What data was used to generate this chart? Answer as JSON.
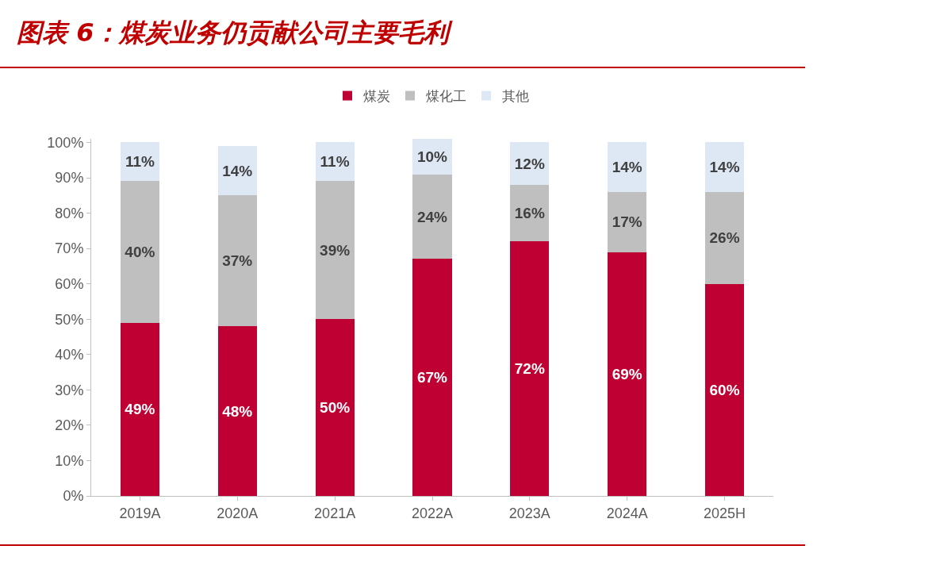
{
  "chart_data": {
    "type": "bar",
    "stacked": true,
    "title": "图表 6：煤炭业务仍贡献公司主要毛利",
    "categories": [
      "2019A",
      "2020A",
      "2021A",
      "2022A",
      "2023A",
      "2024A",
      "2025H"
    ],
    "series": [
      {
        "name": "煤炭",
        "color": "#be0032",
        "values": [
          49,
          48,
          50,
          67,
          72,
          69,
          60
        ],
        "value_labels": [
          "49%",
          "48%",
          "50%",
          "67%",
          "72%",
          "69%",
          "60%"
        ]
      },
      {
        "name": "煤化工",
        "color": "#bfbfbf",
        "values": [
          40,
          37,
          39,
          24,
          16,
          17,
          26
        ],
        "value_labels": [
          "40%",
          "37%",
          "39%",
          "24%",
          "16%",
          "17%",
          "26%"
        ]
      },
      {
        "name": "其他",
        "color": "#dde8f4",
        "values": [
          11,
          14,
          11,
          10,
          12,
          14,
          14
        ],
        "value_labels": [
          "11%",
          "14%",
          "11%",
          "10%",
          "12%",
          "14%",
          "14%"
        ]
      }
    ],
    "ylim": [
      0,
      101
    ],
    "yticks": [
      {
        "value": 0,
        "label": "0%"
      },
      {
        "value": 10,
        "label": "10%"
      },
      {
        "value": 20,
        "label": "20%"
      },
      {
        "value": 30,
        "label": "30%"
      },
      {
        "value": 40,
        "label": "40%"
      },
      {
        "value": 50,
        "label": "50%"
      },
      {
        "value": 60,
        "label": "60%"
      },
      {
        "value": 70,
        "label": "70%"
      },
      {
        "value": 80,
        "label": "80%"
      },
      {
        "value": 90,
        "label": "90%"
      },
      {
        "value": 100,
        "label": "100%"
      }
    ],
    "grid": false,
    "legend": "top"
  }
}
